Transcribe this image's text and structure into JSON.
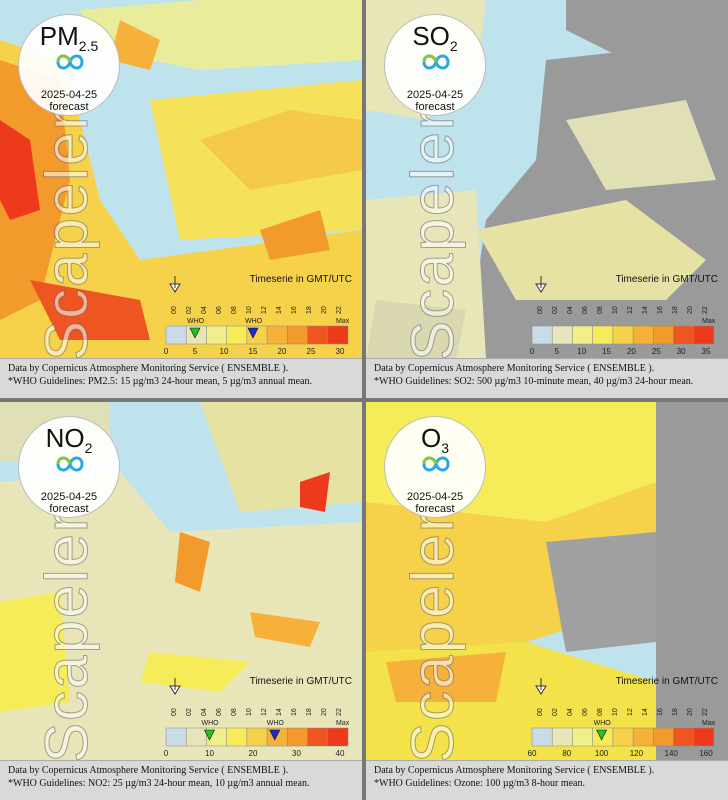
{
  "panels": [
    {
      "pollutant": "PM",
      "pollutant_sub": "2.5",
      "date": "2025-04-25",
      "label": "forecast",
      "watermark": "Scapeler",
      "timeserie": "Timeserie in GMT/UTC",
      "ticks": [
        "0",
        "5",
        "10",
        "15",
        "20",
        "25",
        "30"
      ],
      "max_label": "Max",
      "who_label": "WHO",
      "footer1": "Data by Copernicus Atmosphere Monitoring Service ( ENSEMBLE ).",
      "footer2": "*WHO Guidelines: PM2.5: 15 µg/m3 24-hour mean, 5 µg/m3 annual mean."
    },
    {
      "pollutant": "SO",
      "pollutant_sub": "2",
      "date": "2025-04-25",
      "label": "forecast",
      "watermark": "Scapeler",
      "timeserie": "Timeserie in GMT/UTC",
      "ticks": [
        "0",
        "5",
        "10",
        "15",
        "20",
        "25",
        "30",
        "35"
      ],
      "max_label": "Max",
      "who_label": "",
      "footer1": "Data by Copernicus Atmosphere Monitoring Service ( ENSEMBLE ).",
      "footer2": "*WHO Guidelines: SO2: 500 µg/m3 10-minute mean, 40 µg/m3 24-hour mean."
    },
    {
      "pollutant": "NO",
      "pollutant_sub": "2",
      "date": "2025-04-25",
      "label": "forecast",
      "watermark": "Scapeler",
      "timeserie": "Timeserie in GMT/UTC",
      "ticks": [
        "0",
        "10",
        "20",
        "30",
        "40"
      ],
      "max_label": "Max",
      "who_label": "WHO",
      "footer1": "Data by Copernicus Atmosphere Monitoring Service ( ENSEMBLE ).",
      "footer2": "*WHO Guidelines: NO2: 25 µg/m3 24-hour mean, 10 µg/m3 annual mean."
    },
    {
      "pollutant": "O",
      "pollutant_sub": "3",
      "date": "2025-04-25",
      "label": "forecast",
      "watermark": "Scapeler",
      "timeserie": "Timeserie in GMT/UTC",
      "ticks": [
        "60",
        "80",
        "100",
        "120",
        "140",
        "160"
      ],
      "max_label": "Max",
      "who_label": "WHO",
      "footer1": "Data by Copernicus Atmosphere Monitoring Service ( ENSEMBLE ).",
      "footer2": "*WHO Guidelines: Ozone: 100 µg/m3 8-hour mean."
    }
  ],
  "hour_labels": [
    "00",
    "02",
    "04",
    "06",
    "08",
    "10",
    "12",
    "14",
    "16",
    "18",
    "20",
    "22"
  ],
  "colors": {
    "sea": "#bfe3ec",
    "land_low": "#e8e6b8",
    "land_mid": "#f6ec5a",
    "high": "#f5b13a",
    "very_high": "#ee3a1c",
    "no_data": "#9a9a9a"
  }
}
